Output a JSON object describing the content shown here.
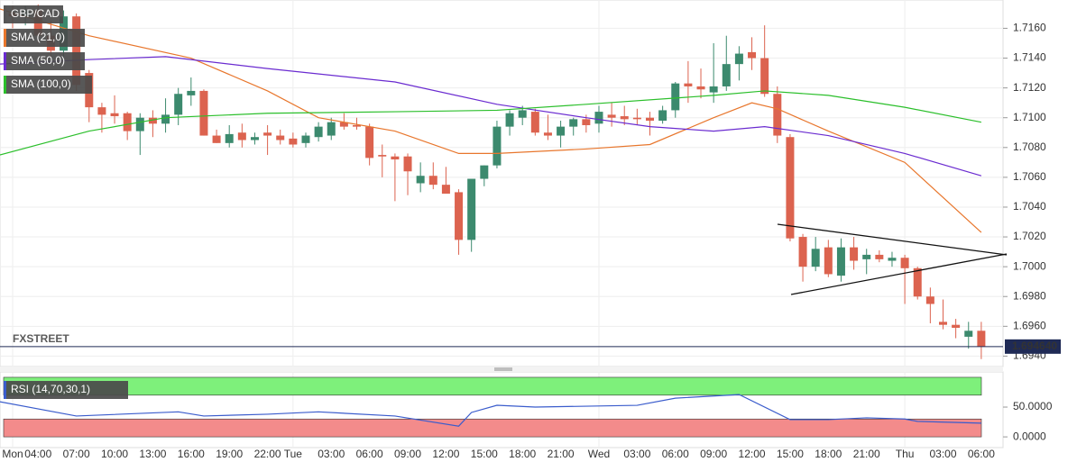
{
  "chart_data": [
    {
      "type": "candlestick",
      "symbol": "GBP/CAD",
      "up_color": "#3c8a6e",
      "down_color": "#dc634f",
      "categories": [
        "Mon",
        null,
        "04:00",
        null,
        null,
        "07:00",
        null,
        null,
        "10:00",
        null,
        null,
        "13:00",
        null,
        null,
        "16:00",
        null,
        null,
        "19:00",
        null,
        null,
        "22:00",
        null,
        "Tue",
        null,
        null,
        "03:00",
        null,
        null,
        "06:00",
        null,
        null,
        "09:00",
        null,
        null,
        "12:00",
        null,
        null,
        "15:00",
        null,
        null,
        "18:00",
        null,
        null,
        "21:00",
        null,
        null,
        "Wed",
        null,
        null,
        "03:00",
        null,
        null,
        "06:00",
        null,
        null,
        "09:00",
        null,
        null,
        "12:00",
        null,
        null,
        "15:00",
        null,
        null,
        "18:00",
        null,
        null,
        "21:00",
        null,
        null,
        "Thu",
        null,
        null,
        "03:00",
        null,
        null,
        "06:00"
      ],
      "open": [
        1.717,
        1.7168,
        1.7172,
        1.7155,
        1.7145,
        1.7168,
        1.713,
        1.7107,
        1.7103,
        1.7103,
        1.7091,
        1.71,
        1.7096,
        1.7102,
        1.7115,
        1.7118,
        1.7088,
        1.7083,
        1.709,
        1.7085,
        1.709,
        1.7088,
        1.7086,
        1.7083,
        1.7087,
        1.7088,
        1.7097,
        1.7095,
        1.7094,
        1.7075,
        1.7074,
        1.7074,
        1.7056,
        1.7061,
        1.7055,
        1.705,
        1.7018,
        1.7059,
        1.7068,
        1.7094,
        1.71,
        1.7104,
        1.709,
        1.7088,
        1.7094,
        1.7099,
        1.7096,
        1.7102,
        1.7101,
        1.71,
        1.71,
        1.7098,
        1.7105,
        1.7123,
        1.7121,
        1.7117,
        1.7121,
        1.7136,
        1.7144,
        1.714,
        1.7116,
        1.7087,
        1.702,
        1.7,
        1.7013,
        1.6994,
        1.7013,
        1.7005,
        1.7008,
        1.7004,
        1.7006,
        1.6999,
        1.698,
        1.6963,
        1.6961,
        1.6953,
        1.6957
      ],
      "high": [
        1.7175,
        1.7175,
        1.7176,
        1.7165,
        1.7172,
        1.717,
        1.7132,
        1.711,
        1.7115,
        1.7104,
        1.7103,
        1.7105,
        1.7113,
        1.712,
        1.7127,
        1.7119,
        1.7092,
        1.7095,
        1.7096,
        1.709,
        1.7095,
        1.7092,
        1.709,
        1.709,
        1.7097,
        1.71,
        1.7103,
        1.71,
        1.7096,
        1.7082,
        1.7076,
        1.7076,
        1.707,
        1.707,
        1.7067,
        1.7052,
        1.7058,
        1.7068,
        1.7098,
        1.7105,
        1.7108,
        1.7106,
        1.7102,
        1.7098,
        1.71,
        1.7102,
        1.7108,
        1.711,
        1.7108,
        1.7106,
        1.7104,
        1.7108,
        1.7124,
        1.7138,
        1.7133,
        1.715,
        1.7155,
        1.7148,
        1.7154,
        1.7162,
        1.7121,
        1.7089,
        1.7022,
        1.702,
        1.7018,
        1.7019,
        1.702,
        1.7012,
        1.7011,
        1.701,
        1.7008,
        1.7,
        1.6986,
        1.6978,
        1.6965,
        1.6963,
        1.6963
      ],
      "low": [
        1.716,
        1.7162,
        1.715,
        1.714,
        1.714,
        1.7118,
        1.7097,
        1.709,
        1.7096,
        1.7085,
        1.7075,
        1.7087,
        1.709,
        1.7095,
        1.7108,
        1.7088,
        1.7083,
        1.708,
        1.708,
        1.7082,
        1.7075,
        1.7082,
        1.708,
        1.708,
        1.7084,
        1.7085,
        1.7092,
        1.7092,
        1.7068,
        1.706,
        1.7044,
        1.7048,
        1.705,
        1.7052,
        1.705,
        1.7008,
        1.701,
        1.7054,
        1.7066,
        1.7088,
        1.7095,
        1.7088,
        1.7085,
        1.708,
        1.7088,
        1.709,
        1.709,
        1.7094,
        1.7095,
        1.7095,
        1.7088,
        1.7096,
        1.71,
        1.711,
        1.7113,
        1.711,
        1.7118,
        1.7125,
        1.7132,
        1.7114,
        1.7083,
        1.7017,
        1.699,
        1.6997,
        1.6993,
        1.699,
        1.6998,
        1.6995,
        1.7003,
        1.7,
        1.6975,
        1.6978,
        1.6962,
        1.6958,
        1.6952,
        1.6945,
        1.6938
      ],
      "close": [
        1.7168,
        1.7172,
        1.7155,
        1.7145,
        1.7168,
        1.7122,
        1.7107,
        1.7102,
        1.7101,
        1.7091,
        1.71,
        1.7096,
        1.7102,
        1.7116,
        1.7118,
        1.7088,
        1.7083,
        1.7089,
        1.7085,
        1.7087,
        1.7088,
        1.7085,
        1.7082,
        1.7088,
        1.7094,
        1.7097,
        1.7094,
        1.7094,
        1.7073,
        1.7074,
        1.7072,
        1.7064,
        1.7061,
        1.7055,
        1.7049,
        1.7018,
        1.7059,
        1.7068,
        1.7094,
        1.7103,
        1.7105,
        1.709,
        1.7088,
        1.7094,
        1.7099,
        1.7095,
        1.7104,
        1.71,
        1.7099,
        1.7099,
        1.7098,
        1.7105,
        1.7123,
        1.7121,
        1.7119,
        1.7121,
        1.7136,
        1.7143,
        1.714,
        1.7116,
        1.7088,
        1.7019,
        1.7,
        1.7012,
        1.6995,
        1.7013,
        1.7004,
        1.7008,
        1.7005,
        1.7006,
        1.6999,
        1.698,
        1.6975,
        1.6961,
        1.6959,
        1.6957,
        1.69464
      ],
      "series": [
        {
          "name": "SMA (21,0)",
          "color": "#e8762c",
          "x": [
            -1,
            6,
            14,
            20,
            24,
            30,
            35,
            38,
            45,
            50,
            55,
            58,
            60,
            64,
            70,
            76
          ],
          "values": [
            1.7173,
            1.7155,
            1.714,
            1.7118,
            1.71,
            1.7091,
            1.7076,
            1.7076,
            1.7079,
            1.7082,
            1.71,
            1.711,
            1.7106,
            1.7091,
            1.707,
            1.7023
          ]
        },
        {
          "name": "SMA (50,0)",
          "color": "#6a2bd0",
          "x": [
            -1,
            6,
            12,
            20,
            30,
            38,
            45,
            50,
            55,
            59,
            64,
            70,
            76
          ],
          "values": [
            1.7136,
            1.7139,
            1.7141,
            1.7133,
            1.7124,
            1.7109,
            1.71,
            1.7094,
            1.7091,
            1.7094,
            1.7088,
            1.7076,
            1.7061
          ]
        },
        {
          "name": "SMA (100,0)",
          "color": "#2bbf2b",
          "x": [
            -1,
            6,
            12,
            20,
            30,
            38,
            45,
            55,
            59,
            64,
            70,
            76
          ],
          "values": [
            1.7075,
            1.7091,
            1.71,
            1.7103,
            1.7104,
            1.7105,
            1.7109,
            1.7115,
            1.7118,
            1.7115,
            1.7107,
            1.7097
          ]
        }
      ],
      "ylim": [
        1.6933,
        1.7179
      ],
      "yticks": [
        {
          "value": 1.694,
          "label": "1.6940"
        },
        {
          "value": 1.696,
          "label": "1.6960"
        },
        {
          "value": 1.698,
          "label": "1.6980"
        },
        {
          "value": 1.7,
          "label": "1.7000"
        },
        {
          "value": 1.702,
          "label": "1.7020"
        },
        {
          "value": 1.704,
          "label": "1.7040"
        },
        {
          "value": 1.706,
          "label": "1.7060"
        },
        {
          "value": 1.708,
          "label": "1.7080"
        },
        {
          "value": 1.71,
          "label": "1.7100"
        },
        {
          "value": 1.712,
          "label": "1.7120"
        },
        {
          "value": 1.714,
          "label": "1.7140"
        },
        {
          "value": 1.716,
          "label": "1.7160"
        }
      ],
      "last_price": {
        "value": 1.69464,
        "label": "1.694640"
      },
      "watermark": "FXSTREET",
      "grid": true
    },
    {
      "type": "line",
      "series": [
        {
          "name": "RSI (14,70,30,1)",
          "color": "#3a5ccc",
          "x": [
            -1,
            5,
            13,
            15,
            20,
            24,
            30,
            35,
            36,
            38,
            41,
            49,
            52,
            57,
            61,
            64,
            67,
            70,
            71,
            76
          ],
          "values": [
            59,
            35,
            42,
            35,
            38,
            42,
            35,
            18,
            41,
            53,
            50,
            53,
            65,
            71,
            29,
            29,
            32,
            30,
            26,
            23
          ]
        }
      ],
      "bands": [
        {
          "from": 70,
          "to": 100,
          "color": "#7ef07b"
        },
        {
          "from": 0,
          "to": 30,
          "color": "#f38b8b"
        }
      ],
      "ylim": [
        -18,
        109
      ],
      "yticks": [
        {
          "value": 0,
          "label": "0.0000"
        },
        {
          "value": 50,
          "label": "50.0000"
        }
      ]
    }
  ]
}
